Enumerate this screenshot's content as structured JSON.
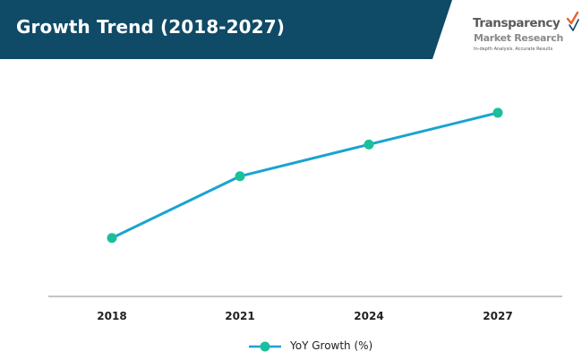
{
  "header": {
    "title": "Growth Trend (2018-2027)",
    "background_color": "#0f4a66"
  },
  "logo": {
    "name_line1": "Transparency",
    "name_line2": "Market Research",
    "tagline": "In-depth Analysis. Accurate Results",
    "mark_icon": "checkmark-icon",
    "accent_color": "#e8622c"
  },
  "colors": {
    "series_line": "#1aa3d1",
    "series_marker": "#1bbf9c",
    "axis": "#555555"
  },
  "chart_data": {
    "type": "line",
    "title": "Growth Trend (2018-2027)",
    "xlabel": "",
    "ylabel": "",
    "categories": [
      "2018",
      "2021",
      "2024",
      "2027"
    ],
    "series": [
      {
        "name": "YoY Growth (%)",
        "values": [
          3.5,
          7.2,
          9.1,
          11.0
        ]
      }
    ],
    "ylim": [
      0,
      14
    ],
    "grid": false,
    "legend_position": "bottom"
  },
  "legend": {
    "items": [
      {
        "label": "YoY Growth (%)"
      }
    ]
  }
}
